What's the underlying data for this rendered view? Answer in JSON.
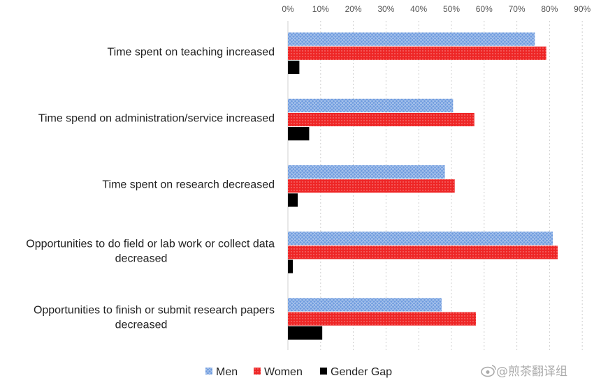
{
  "chart_data": {
    "type": "bar",
    "orientation": "horizontal",
    "categories": [
      [
        "Time spent on teaching increased"
      ],
      [
        "Time spend on administration/service increased"
      ],
      [
        "Time spent on research decreased"
      ],
      [
        "Opportunities to do field or lab work or collect data",
        "decreased"
      ],
      [
        "Opportunities to  finish or submit research papers",
        "decreased"
      ]
    ],
    "series": [
      {
        "name": "Men",
        "values": [
          75.5,
          50.5,
          48,
          81,
          47
        ],
        "color": "#5b8fd6",
        "pattern": "crosshatch"
      },
      {
        "name": "Women",
        "values": [
          79,
          57,
          51,
          82.5,
          57.5
        ],
        "color": "#ee2222",
        "pattern": "dots"
      },
      {
        "name": "Gender Gap",
        "values": [
          3.5,
          6.5,
          3,
          1.5,
          10.5
        ],
        "color": "#000000",
        "pattern": "solid"
      }
    ],
    "x_ticks": [
      "0%",
      "10%",
      "20%",
      "30%",
      "40%",
      "50%",
      "60%",
      "70%",
      "80%",
      "90%"
    ],
    "xlim": [
      0,
      90
    ],
    "x_axis_position": "top",
    "grid": "vertical dashed",
    "legend": "bottom-center",
    "title": "",
    "xlabel": "",
    "ylabel": ""
  },
  "watermark": {
    "text": "@煎茶翻译组",
    "icon": "weibo-icon"
  }
}
